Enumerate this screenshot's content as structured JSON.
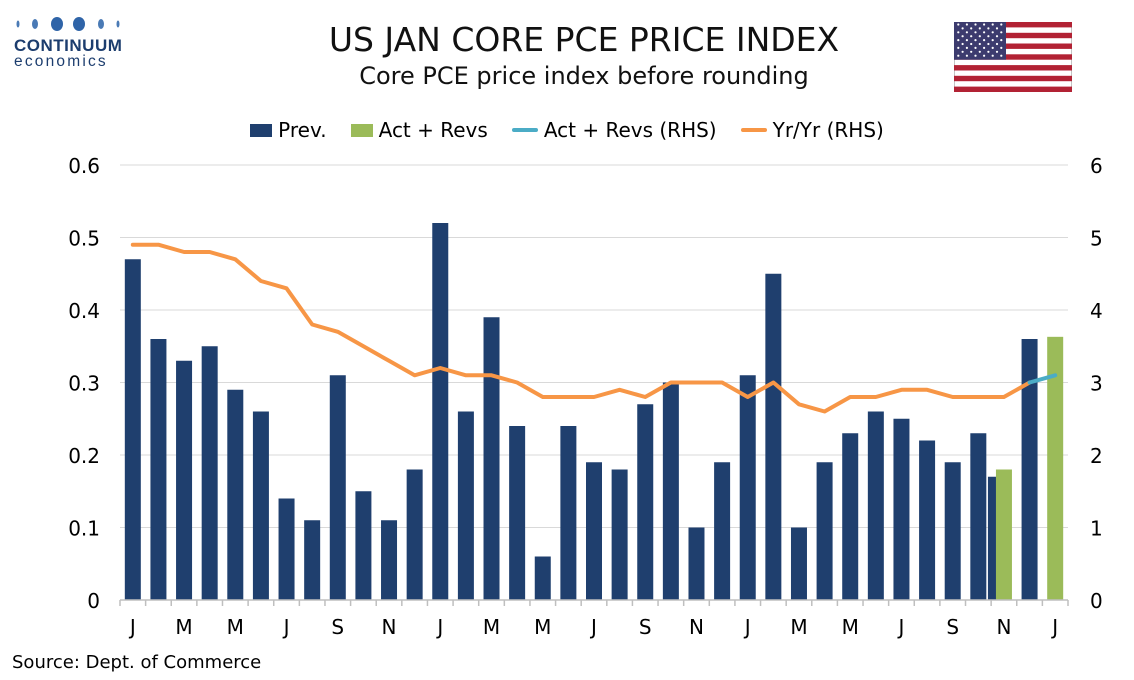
{
  "logo": {
    "name": "CONTINUUM",
    "sub": "economics"
  },
  "title": "US JAN CORE PCE PRICE INDEX",
  "subtitle": "Core PCE price index before rounding",
  "source": "Source: Dept. of Commerce",
  "colors": {
    "prev": "#1f3f6e",
    "act": "#9bbb59",
    "act_line": "#4bacc6",
    "yoy": "#f79646",
    "grid": "#d9d9d9",
    "axis": "#bfbfbf"
  },
  "legend": [
    {
      "label": "Prev.",
      "kind": "bar",
      "color": "#1f3f6e"
    },
    {
      "label": "Act + Revs",
      "kind": "bar",
      "color": "#9bbb59"
    },
    {
      "label": "Act + Revs (RHS)",
      "kind": "line",
      "color": "#4bacc6"
    },
    {
      "label": "Yr/Yr (RHS)",
      "kind": "line",
      "color": "#f79646"
    }
  ],
  "chart_data": {
    "type": "bar",
    "title": "US JAN CORE PCE PRICE INDEX",
    "subtitle": "Core PCE price index before rounding",
    "ylim": [
      0,
      0.6
    ],
    "y_ticks": [
      "0",
      "0.1",
      "0.2",
      "0.3",
      "0.4",
      "0.5",
      "0.6"
    ],
    "y2lim": [
      0,
      6
    ],
    "y2_ticks": [
      "0",
      "1",
      "2",
      "3",
      "4",
      "5",
      "6"
    ],
    "x_tick_labels": [
      "J",
      "M",
      "M",
      "J",
      "S",
      "N",
      "J",
      "M",
      "M",
      "J",
      "S",
      "N",
      "J",
      "M",
      "M",
      "J",
      "S",
      "N",
      "J"
    ],
    "n_months": 37,
    "series": [
      {
        "name": "Prev.",
        "kind": "bar",
        "axis": "left",
        "values": [
          0.47,
          0.36,
          0.33,
          0.35,
          0.29,
          0.26,
          0.14,
          0.11,
          0.31,
          0.15,
          0.11,
          0.18,
          0.52,
          0.26,
          0.39,
          0.24,
          0.06,
          0.24,
          0.19,
          0.18,
          0.27,
          0.3,
          0.1,
          0.19,
          0.31,
          0.45,
          0.1,
          0.19,
          0.23,
          0.26,
          0.25,
          0.22,
          0.19,
          0.23,
          0.17,
          0.36,
          null
        ]
      },
      {
        "name": "Act + Revs",
        "kind": "bar",
        "axis": "left",
        "values": [
          null,
          null,
          null,
          null,
          null,
          null,
          null,
          null,
          null,
          null,
          null,
          null,
          null,
          null,
          null,
          null,
          null,
          null,
          null,
          null,
          null,
          null,
          null,
          null,
          null,
          null,
          null,
          null,
          null,
          null,
          null,
          null,
          null,
          null,
          0.18,
          null,
          0.363
        ]
      },
      {
        "name": "Act + Revs (RHS)",
        "kind": "line",
        "axis": "right",
        "values": [
          null,
          null,
          null,
          null,
          null,
          null,
          null,
          null,
          null,
          null,
          null,
          null,
          null,
          null,
          null,
          null,
          null,
          null,
          null,
          null,
          null,
          null,
          null,
          null,
          null,
          null,
          null,
          null,
          null,
          null,
          null,
          null,
          null,
          null,
          null,
          3.0,
          3.1
        ]
      },
      {
        "name": "Yr/Yr (RHS)",
        "kind": "line",
        "axis": "right",
        "values": [
          4.9,
          4.9,
          4.8,
          4.8,
          4.7,
          4.4,
          4.3,
          3.8,
          3.7,
          3.5,
          3.3,
          3.1,
          3.2,
          3.1,
          3.1,
          3.0,
          2.8,
          2.8,
          2.8,
          2.9,
          2.8,
          3.0,
          3.0,
          3.0,
          2.8,
          3.0,
          2.7,
          2.6,
          2.8,
          2.8,
          2.9,
          2.9,
          2.8,
          2.8,
          2.8,
          3.0,
          null
        ]
      }
    ]
  }
}
